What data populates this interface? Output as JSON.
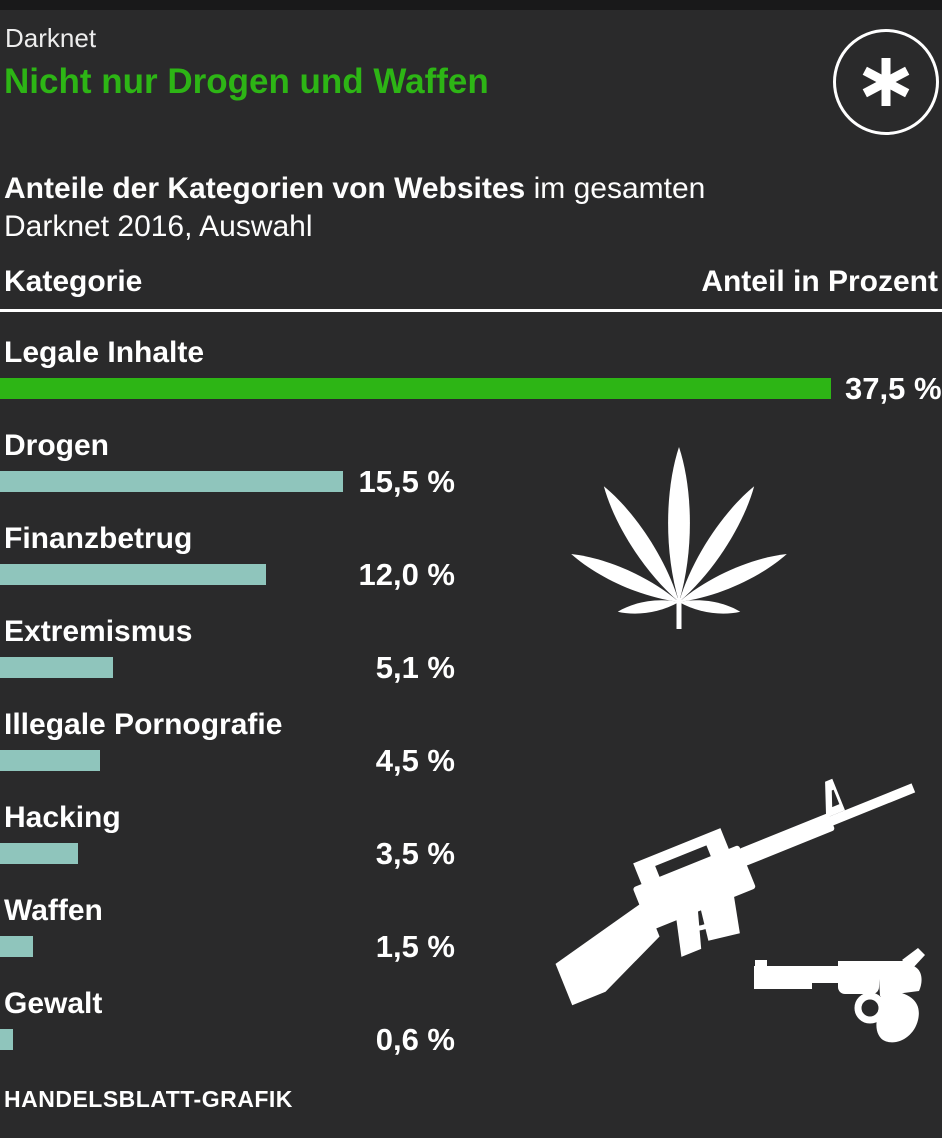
{
  "header": {
    "kicker": "Darknet",
    "title": "Nicht nur Drogen und Waffen"
  },
  "subtitle": {
    "line1_bold": "Anteile der Kategorien von Websites",
    "line1_rest": " im gesamten",
    "line2": "Darknet 2016, Auswahl"
  },
  "table": {
    "col_category": "Kategorie",
    "col_value": "Anteil in Prozent"
  },
  "chart_data": {
    "type": "bar",
    "orientation": "horizontal",
    "categories": [
      "Legale Inhalte",
      "Drogen",
      "Finanzbetrug",
      "Extremismus",
      "Illegale Pornografie",
      "Hacking",
      "Waffen",
      "Gewalt"
    ],
    "values": [
      37.5,
      15.5,
      12.0,
      5.1,
      4.5,
      3.5,
      1.5,
      0.6
    ],
    "value_labels": [
      "37,5 %",
      "15,5 %",
      "12,0 %",
      "5,1 %",
      "4,5 %",
      "3,5 %",
      "1,5 %",
      "0,6 %"
    ],
    "xlim": [
      0,
      37.5
    ],
    "highlight_index": 0,
    "bar_colors": {
      "highlight": "#2db515",
      "default": "#8fc5bc"
    },
    "grid": false,
    "legend": false,
    "title": "Nicht nur Drogen und Waffen",
    "unit": "Prozent"
  },
  "icons": {
    "asterisk": "asterisk-circle-icon",
    "leaf": "cannabis-leaf-icon",
    "rifle": "rifle-icon",
    "revolver": "revolver-icon"
  },
  "colors": {
    "background": "#2a2a2b",
    "top_strip": "#19191a",
    "accent_green": "#2db515",
    "bar_teal": "#8fc5bc",
    "text": "#ffffff"
  },
  "footer": {
    "credit": "HANDELSBLATT-GRAFIK"
  }
}
